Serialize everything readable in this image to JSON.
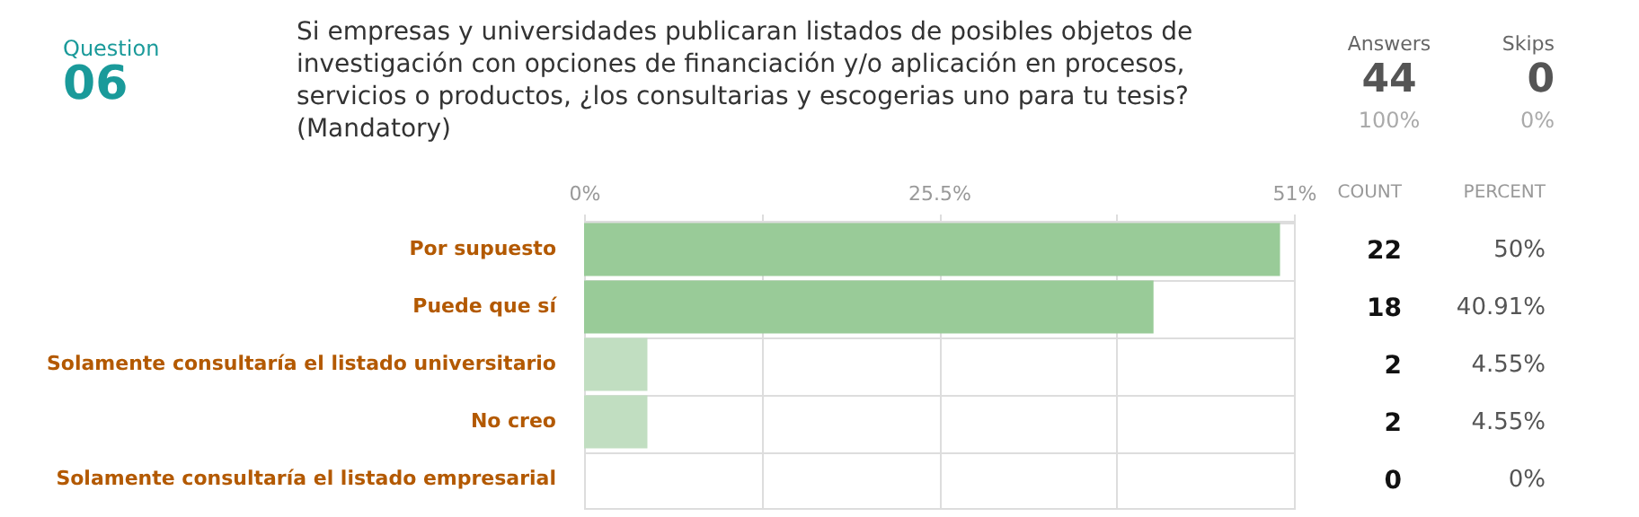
{
  "chart_data": {
    "type": "bar",
    "orientation": "horizontal",
    "title": "Si empresas y universidades publicaran listados de posibles objetos de investigación con opciones de financiación y/o aplicación en procesos, servicios o productos, ¿los consultarias y escogerias uno para tu tesis? (Mandatory)",
    "categories": [
      "Por supuesto",
      "Puede que sí",
      "Solamente consultaría el listado universitario",
      "No creo",
      "Solamente consultaría el listado empresarial"
    ],
    "values": [
      50,
      40.91,
      4.55,
      4.55,
      0
    ],
    "colors": [
      "#99cb98",
      "#99cb98",
      "#c1dec1",
      "#c1dec1",
      "#c1dec1"
    ],
    "value_labels": [
      "50%",
      "40.91%",
      "4.55%",
      "4.55%",
      "0%"
    ],
    "xlim": [
      0,
      51
    ],
    "xticks": [
      {
        "value": 0,
        "label": "0%"
      },
      {
        "value": 12.75,
        "label": null
      },
      {
        "value": 25.5,
        "label": "25.5%"
      },
      {
        "value": 38.25,
        "label": null
      },
      {
        "value": 51,
        "label": "51%"
      }
    ],
    "grid": true,
    "annotations": [
      "Question",
      "06",
      "Answers",
      "44",
      "100%",
      "Skips",
      "0",
      "0%",
      "COUNT",
      "PERCENT",
      "22",
      "18",
      "2",
      "2",
      "0"
    ]
  }
}
